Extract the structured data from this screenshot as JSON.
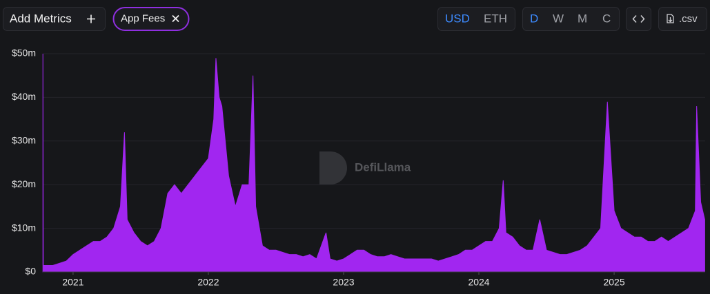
{
  "toolbar": {
    "add_metrics": "Add Metrics",
    "currencies": [
      "USD",
      "ETH"
    ],
    "intervals": [
      "D",
      "W",
      "M",
      "C"
    ],
    "csv": ".csv"
  },
  "watermark": "DefiLlama",
  "chart_data": {
    "type": "area",
    "x": [
      2020.777,
      2020.78,
      2020.8,
      2020.85,
      2020.9,
      2020.95,
      2021.0,
      2021.05,
      2021.1,
      2021.15,
      2021.2,
      2021.25,
      2021.3,
      2021.35,
      2021.38,
      2021.4,
      2021.45,
      2021.5,
      2021.55,
      2021.6,
      2021.65,
      2021.7,
      2021.75,
      2021.8,
      2021.85,
      2021.9,
      2021.95,
      2022.0,
      2022.04,
      2022.056,
      2022.08,
      2022.1,
      2022.15,
      2022.2,
      2022.25,
      2022.3,
      2022.33,
      2022.35,
      2022.4,
      2022.45,
      2022.5,
      2022.55,
      2022.6,
      2022.65,
      2022.7,
      2022.75,
      2022.8,
      2022.87,
      2022.9,
      2022.95,
      2023.0,
      2023.05,
      2023.1,
      2023.15,
      2023.2,
      2023.25,
      2023.3,
      2023.35,
      2023.4,
      2023.45,
      2023.5,
      2023.55,
      2023.6,
      2023.65,
      2023.7,
      2023.75,
      2023.8,
      2023.85,
      2023.9,
      2023.95,
      2024.0,
      2024.05,
      2024.1,
      2024.15,
      2024.18,
      2024.2,
      2024.25,
      2024.3,
      2024.35,
      2024.4,
      2024.45,
      2024.5,
      2024.55,
      2024.6,
      2024.65,
      2024.7,
      2024.75,
      2024.8,
      2024.85,
      2024.9,
      2024.95,
      2025.0,
      2025.05,
      2025.1,
      2025.15,
      2025.2,
      2025.25,
      2025.3,
      2025.35,
      2025.4,
      2025.45,
      2025.5,
      2025.55,
      2025.6,
      2025.61,
      2025.64,
      2025.67
    ],
    "series": [
      {
        "name": "App Fees",
        "color": "#a126f0",
        "values": [
          50,
          1.5,
          1.5,
          1.5,
          2,
          2.5,
          4,
          5,
          6,
          7,
          7,
          8,
          10,
          15,
          32,
          12,
          9,
          7,
          6,
          7,
          10,
          18,
          20,
          18,
          20,
          22,
          24,
          26,
          35,
          49,
          40,
          38,
          22,
          15,
          20,
          20,
          45,
          15,
          6,
          5,
          5,
          4.5,
          4,
          4,
          3.5,
          4,
          3,
          9,
          3,
          2.5,
          3,
          4,
          5,
          5,
          4,
          3.5,
          3.5,
          4,
          3.5,
          3,
          3,
          3,
          3,
          3,
          2.5,
          3,
          3.5,
          4,
          5,
          5,
          6,
          7,
          7,
          10,
          21,
          9,
          8,
          6,
          5,
          5,
          12,
          5,
          4.5,
          4,
          4,
          4.5,
          5,
          6,
          8,
          10,
          39,
          14,
          10,
          9,
          8,
          8,
          7,
          7,
          8,
          7,
          8,
          9,
          10,
          14,
          38,
          16,
          12
        ]
      }
    ],
    "xlim": [
      2020.776,
      2025.673
    ],
    "xticks": [
      2021,
      2022,
      2023,
      2024,
      2025
    ],
    "ylim": [
      0,
      50
    ],
    "yticks": [
      {
        "value": 0,
        "label": "$0"
      },
      {
        "value": 10,
        "label": "$10m"
      },
      {
        "value": 20,
        "label": "$20m"
      },
      {
        "value": 30,
        "label": "$30m"
      },
      {
        "value": 40,
        "label": "$40m"
      },
      {
        "value": 50,
        "label": "$50m"
      }
    ],
    "grid": true
  }
}
